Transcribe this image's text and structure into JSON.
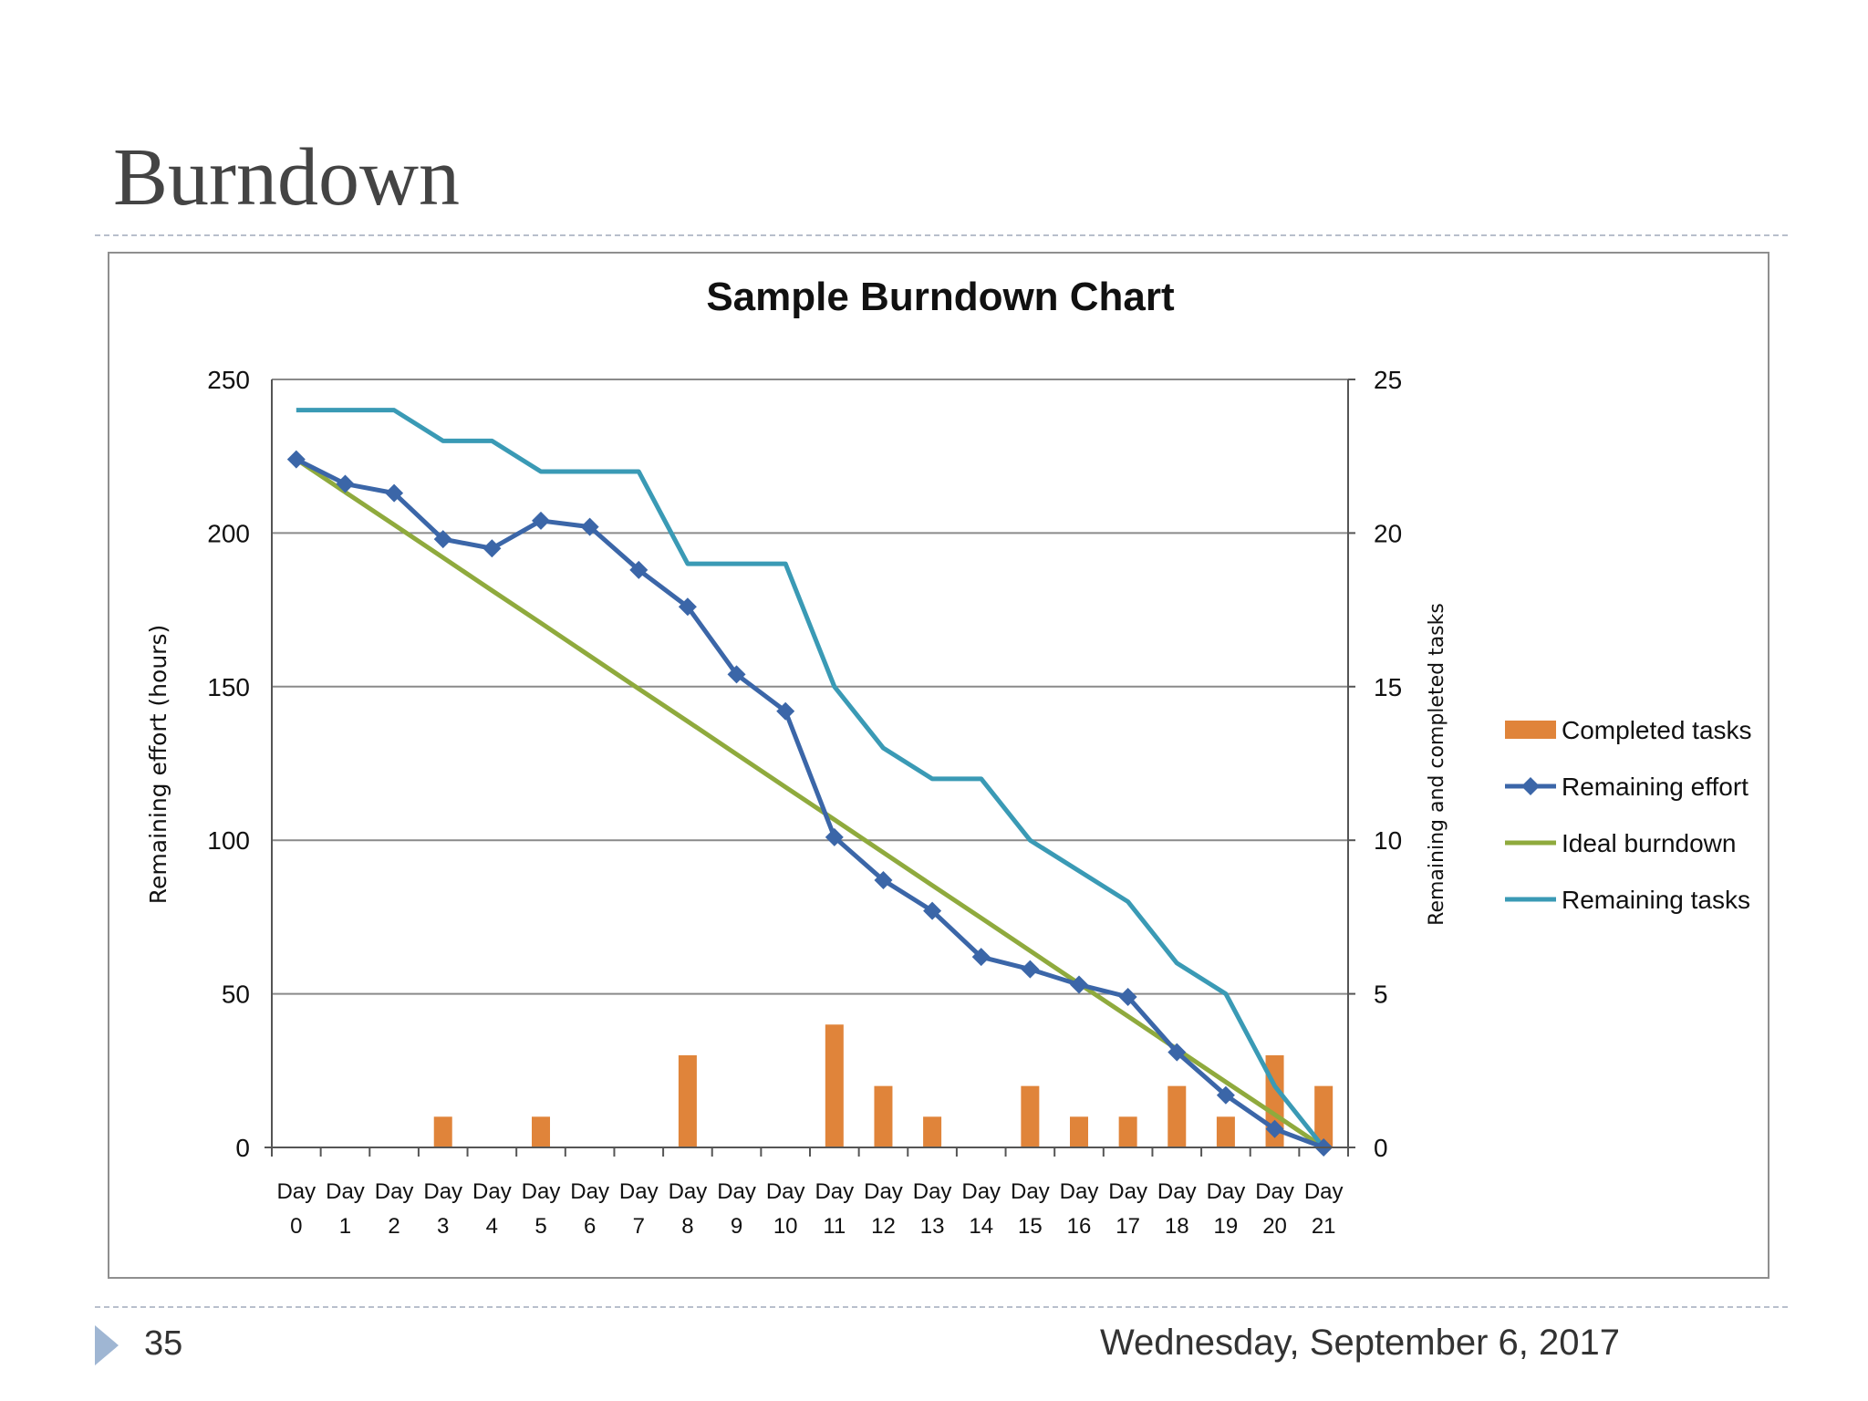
{
  "slide": {
    "title": "Burndown",
    "page_number": "35",
    "date": "Wednesday, September 6, 2017"
  },
  "colors": {
    "completed_tasks": "#e0843a",
    "remaining_effort": "#3b66a8",
    "ideal_burndown": "#8faa3d",
    "remaining_tasks": "#3a9ab5",
    "grid": "#8a8a8a"
  },
  "chart_data": {
    "type": "bar+line",
    "title": "Sample Burndown Chart",
    "ylabel": "Remaining effort (hours)",
    "y2label": "Remaining and completed tasks",
    "ylim": [
      0,
      250
    ],
    "y2lim": [
      0,
      25
    ],
    "yticks": [
      "0",
      "50",
      "100",
      "150",
      "200",
      "250"
    ],
    "y2ticks": [
      "0",
      "5",
      "10",
      "15",
      "20",
      "25"
    ],
    "categories_line1": [
      "Day",
      "Day",
      "Day",
      "Day",
      "Day",
      "Day",
      "Day",
      "Day",
      "Day",
      "Day",
      "Day",
      "Day",
      "Day",
      "Day",
      "Day",
      "Day",
      "Day",
      "Day",
      "Day",
      "Day",
      "Day",
      "Day"
    ],
    "categories_line2": [
      "0",
      "1",
      "2",
      "3",
      "4",
      "5",
      "6",
      "7",
      "8",
      "9",
      "10",
      "11",
      "12",
      "13",
      "14",
      "15",
      "16",
      "17",
      "18",
      "19",
      "20",
      "21"
    ],
    "grid": true,
    "legend_position": "right",
    "series": [
      {
        "name": "Completed tasks",
        "type": "bar",
        "axis": "right",
        "values": [
          0,
          0,
          0,
          1,
          0,
          1,
          0,
          0,
          3,
          0,
          0,
          4,
          2,
          1,
          0,
          2,
          1,
          1,
          2,
          1,
          3,
          2
        ]
      },
      {
        "name": "Remaining effort",
        "type": "line-marker",
        "axis": "left",
        "values": [
          224,
          216,
          213,
          198,
          195,
          204,
          202,
          188,
          176,
          154,
          142,
          101,
          87,
          77,
          62,
          58,
          53,
          49,
          31,
          17,
          6,
          0
        ]
      },
      {
        "name": "Ideal burndown",
        "type": "line",
        "axis": "left",
        "values": [
          224,
          213.3,
          202.7,
          192,
          181.3,
          170.7,
          160,
          149.3,
          138.7,
          128,
          117.3,
          106.7,
          96,
          85.3,
          74.7,
          64,
          53.3,
          42.7,
          32,
          21.3,
          10.7,
          0
        ]
      },
      {
        "name": "Remaining tasks",
        "type": "step-line",
        "axis": "right",
        "values": [
          24,
          24,
          24,
          23,
          23,
          22,
          22,
          22,
          19,
          19,
          19,
          15,
          13,
          12,
          12,
          10,
          9,
          8,
          6,
          5,
          2,
          0
        ]
      }
    ]
  }
}
